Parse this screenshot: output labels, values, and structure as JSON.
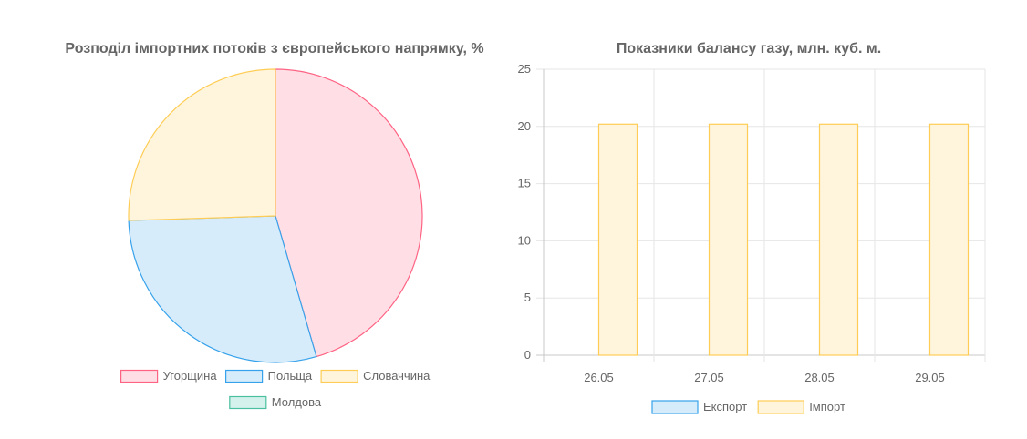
{
  "chart_data": [
    {
      "type": "pie",
      "title": "Розподіл імпортних потоків з європейського напрямку, %",
      "labels": [
        "Угорщина",
        "Польща",
        "Словаччина",
        "Молдова"
      ],
      "values": [
        45.5,
        29.0,
        25.5,
        0
      ],
      "colors": {
        "fill": [
          "#ffdfe5",
          "#d7ecfb",
          "#fff5dd",
          "#d4f1eb"
        ],
        "stroke": [
          "#ff6384",
          "#36a2eb",
          "#ffcd56",
          "#4bc0a0"
        ]
      },
      "legend_position": "bottom"
    },
    {
      "type": "bar",
      "title": "Показники балансу газу, млн. куб. м.",
      "categories": [
        "26.05",
        "27.05",
        "28.05",
        "29.05"
      ],
      "series": [
        {
          "name": "Експорт",
          "values": [
            0,
            0,
            0,
            0
          ],
          "fill": "#d7ecfb",
          "stroke": "#36a2eb"
        },
        {
          "name": "Імпорт",
          "values": [
            20.2,
            20.2,
            20.2,
            20.2
          ],
          "fill": "#fff5dd",
          "stroke": "#ffcd56"
        }
      ],
      "ylim": [
        0,
        25
      ],
      "yticks": [
        "0",
        "5",
        "10",
        "15",
        "20",
        "25"
      ],
      "grid": true,
      "legend_position": "bottom"
    }
  ]
}
